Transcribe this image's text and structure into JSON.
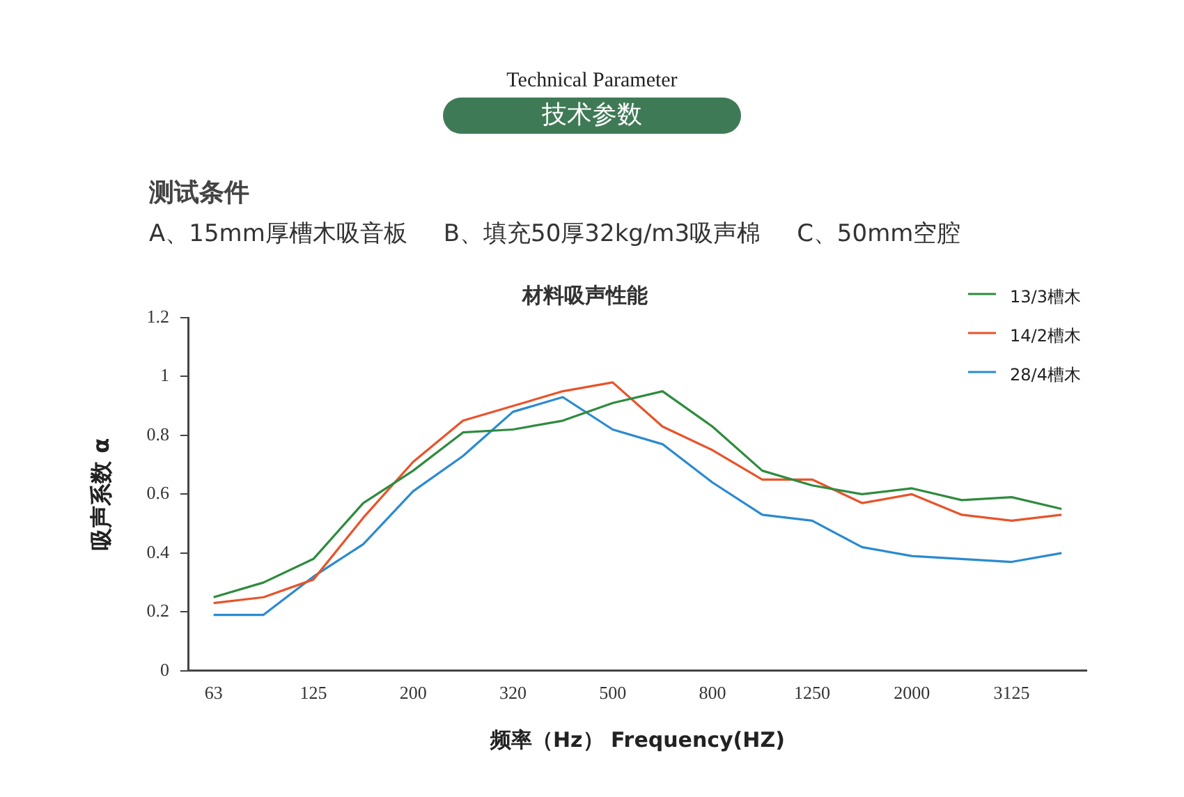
{
  "chart_data": {
    "type": "line",
    "title": "材料吸声性能",
    "xlabel": "频率（Hz） Frequency(HZ)",
    "ylabel": "吸声系数 α",
    "annotations": [
      "Technical Parameter",
      "技术参数",
      "测试条件",
      "A、15mm厚槽木吸音板",
      "B、填充50厚32kg/m3吸声棉",
      "C、50mm空腔"
    ],
    "categories": [
      "63",
      null,
      "125",
      null,
      "200",
      null,
      "320",
      null,
      "500",
      null,
      "800",
      null,
      "1250",
      null,
      "2000",
      null,
      "3125",
      null
    ],
    "series": [
      {
        "name": "13/3槽木",
        "color": "#2e8b3e",
        "values": [
          0.25,
          0.3,
          0.38,
          0.57,
          0.68,
          0.81,
          0.82,
          0.85,
          0.91,
          0.95,
          0.83,
          0.68,
          0.63,
          0.6,
          0.62,
          0.58,
          0.59,
          0.55
        ]
      },
      {
        "name": "14/2槽木",
        "color": "#e8532a",
        "values": [
          0.23,
          0.25,
          0.31,
          0.52,
          0.71,
          0.85,
          0.9,
          0.95,
          0.98,
          0.83,
          0.75,
          0.65,
          0.65,
          0.57,
          0.6,
          0.53,
          0.51,
          0.53
        ]
      },
      {
        "name": "28/4槽木",
        "color": "#2a8ad0",
        "values": [
          0.19,
          0.19,
          0.32,
          0.43,
          0.61,
          0.73,
          0.88,
          0.93,
          0.82,
          0.77,
          0.64,
          0.53,
          0.51,
          0.42,
          0.39,
          0.38,
          0.37,
          0.4
        ]
      }
    ],
    "ylim": [
      0,
      1.2
    ],
    "yticks": [
      0,
      0.2,
      0.4,
      0.6,
      0.8,
      1,
      1.2
    ],
    "grid": false,
    "legend": "top right",
    "marker": "none",
    "line_style": "solid"
  }
}
